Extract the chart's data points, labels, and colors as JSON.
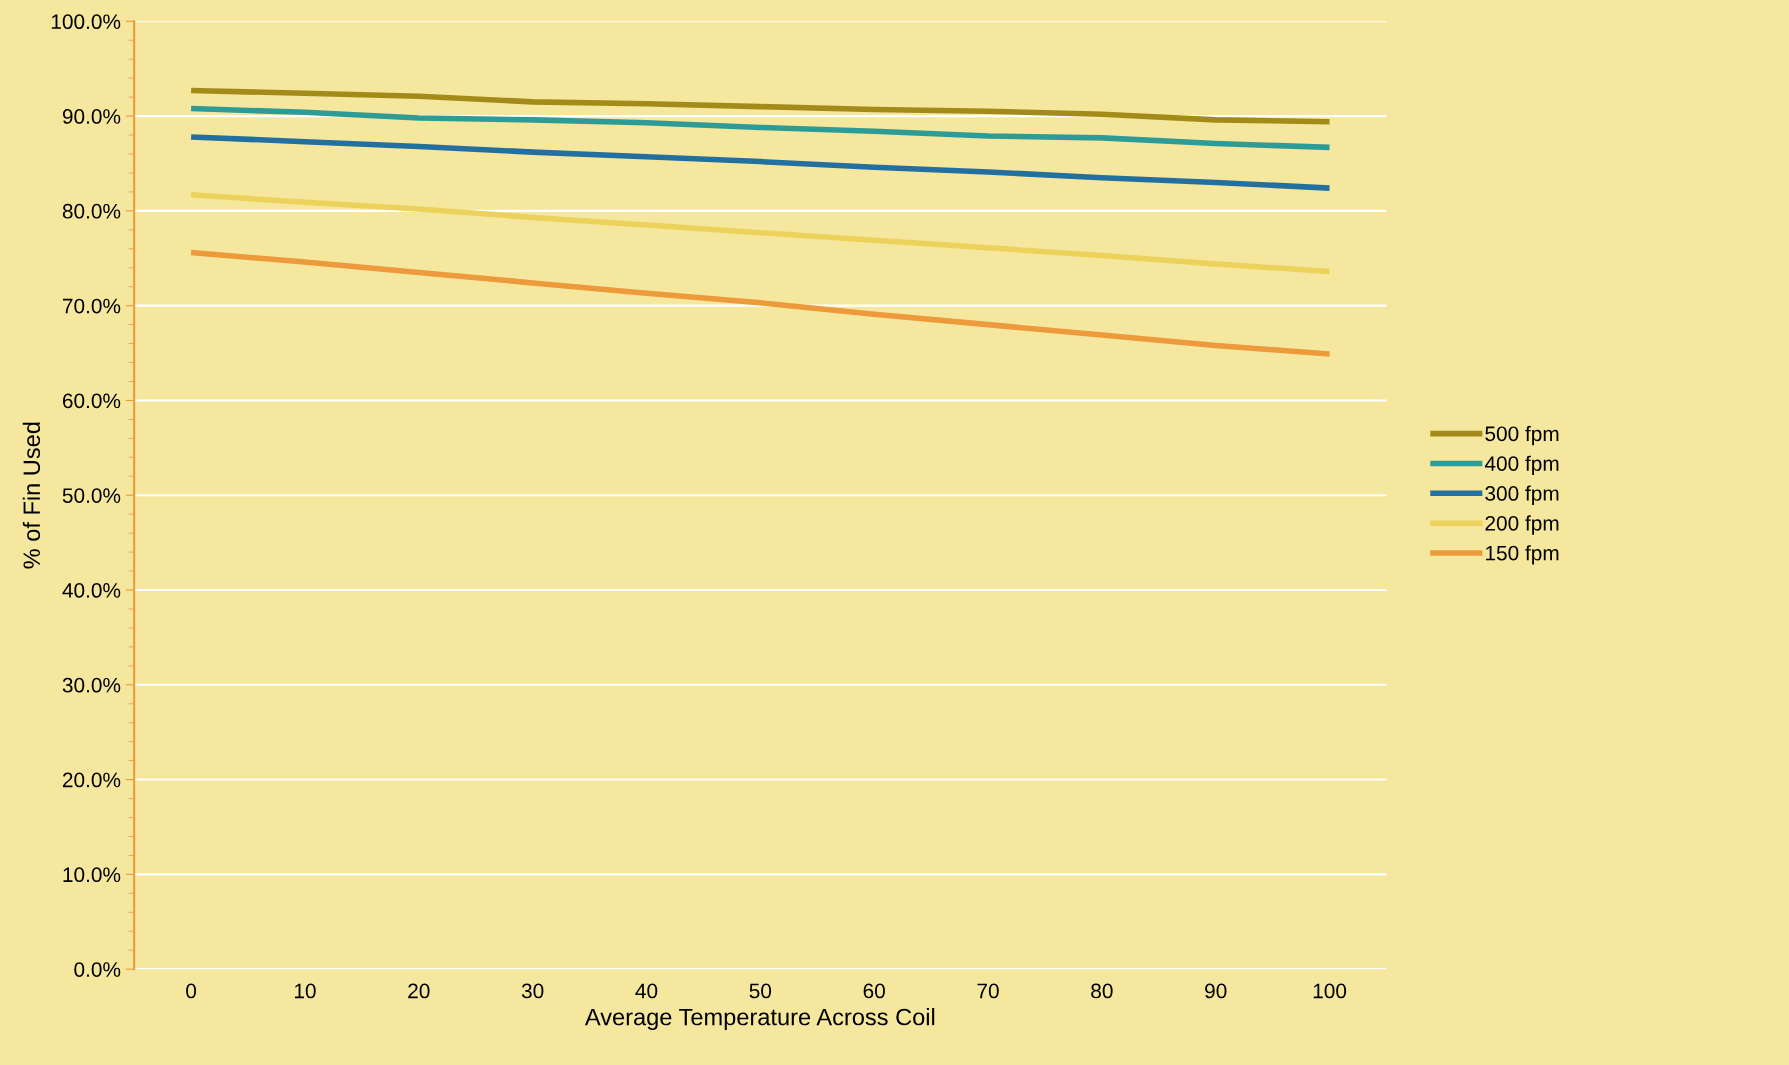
{
  "chart_data": {
    "type": "line",
    "xlabel": "Average Temperature Across Coil",
    "ylabel": "% of Fin Used",
    "categories": [
      "0",
      "10",
      "20",
      "30",
      "40",
      "50",
      "60",
      "70",
      "80",
      "90",
      "100"
    ],
    "series": [
      {
        "name": "500 fpm",
        "color": "#a38b1a",
        "values": [
          92.7,
          92.4,
          92.1,
          91.5,
          91.3,
          91.0,
          90.7,
          90.5,
          90.2,
          89.6,
          89.4
        ]
      },
      {
        "name": "400 fpm",
        "color": "#2e9c96",
        "values": [
          90.8,
          90.4,
          89.8,
          89.6,
          89.3,
          88.8,
          88.4,
          87.9,
          87.7,
          87.1,
          86.7
        ]
      },
      {
        "name": "300 fpm",
        "color": "#2370a0",
        "values": [
          87.8,
          87.3,
          86.8,
          86.2,
          85.7,
          85.2,
          84.6,
          84.1,
          83.5,
          83.0,
          82.4
        ]
      },
      {
        "name": "200 fpm",
        "color": "#ecd25a",
        "values": [
          81.7,
          80.9,
          80.2,
          79.3,
          78.5,
          77.7,
          76.9,
          76.1,
          75.3,
          74.4,
          73.6
        ]
      },
      {
        "name": "150 fpm",
        "color": "#ec9a3c",
        "values": [
          75.6,
          74.6,
          73.5,
          72.4,
          71.3,
          70.3,
          69.1,
          68.0,
          66.9,
          65.8,
          64.9
        ]
      }
    ],
    "ylim": [
      0,
      100
    ],
    "yticks": [
      {
        "value": 0,
        "label": "0.0%"
      },
      {
        "value": 10,
        "label": "10.0%"
      },
      {
        "value": 20,
        "label": "20.0%"
      },
      {
        "value": 30,
        "label": "30.0%"
      },
      {
        "value": 40,
        "label": "40.0%"
      },
      {
        "value": 50,
        "label": "50.0%"
      },
      {
        "value": 60,
        "label": "60.0%"
      },
      {
        "value": 70,
        "label": "70.0%"
      },
      {
        "value": 80,
        "label": "80.0%"
      },
      {
        "value": 90,
        "label": "90.0%"
      },
      {
        "value": 100,
        "label": "100.0%"
      }
    ],
    "grid": "y",
    "legend": "right",
    "marker": "none",
    "line_style": "solid"
  }
}
